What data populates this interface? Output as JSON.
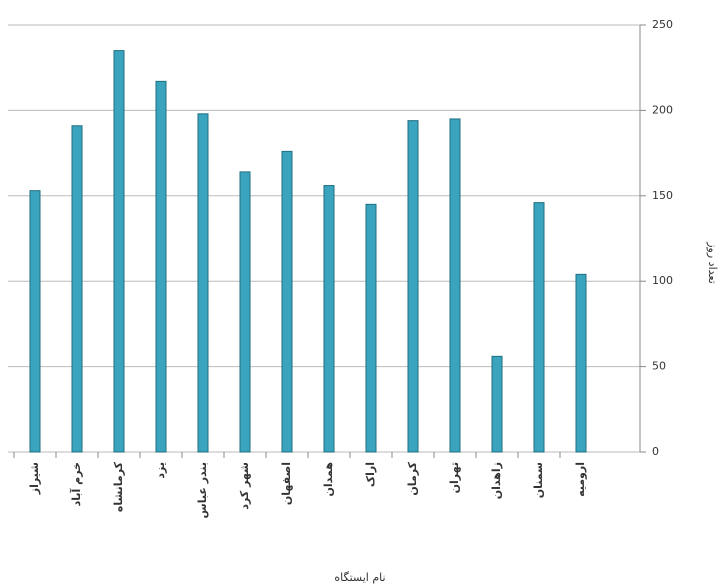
{
  "chart_data": {
    "type": "bar",
    "x_axis_title": "نام ایستگاه",
    "y_axis_title": "تعداد روز",
    "categories": [
      "شیراز",
      "خرم آباد",
      "کرمانشاه",
      "یزد",
      "بندر عباس",
      "شهر کرد",
      "اصفهان",
      "همدان",
      "اراک",
      "کرمان",
      "تهران",
      "زاهدان",
      "سمنان",
      "ارومیه"
    ],
    "values": [
      153,
      191,
      235,
      217,
      198,
      164,
      176,
      156,
      145,
      194,
      195,
      56,
      146,
      104
    ],
    "color": "#3aa3bd",
    "ylim": [
      0,
      250
    ],
    "yticks": [
      0,
      50,
      100,
      150,
      200,
      250
    ],
    "grid": true
  }
}
